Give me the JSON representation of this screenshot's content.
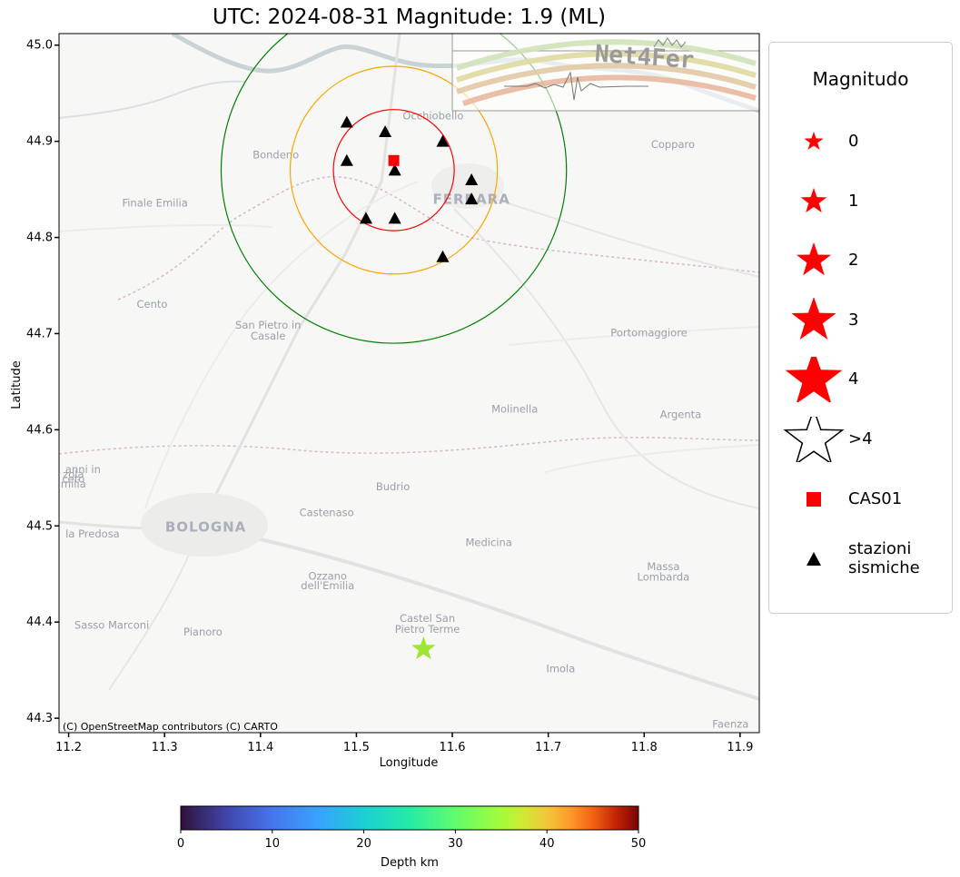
{
  "title": "UTC: 2024-08-31 Magnitude: 1.9 (ML)",
  "axes": {
    "xlabel": "Longitude",
    "ylabel": "Latitude",
    "xlim": [
      11.19,
      11.92
    ],
    "ylim": [
      44.285,
      45.012
    ],
    "xticks": [
      "11.2",
      "11.3",
      "11.4",
      "11.5",
      "11.6",
      "11.7",
      "11.8",
      "11.9"
    ],
    "yticks": [
      "44.3",
      "44.4",
      "44.5",
      "44.6",
      "44.7",
      "44.8",
      "44.9",
      "45.0"
    ]
  },
  "map": {
    "attribution": "(C) OpenStreetMap contributors (C) CARTO",
    "places": [
      {
        "name": "Occhiobello",
        "lon": 11.58,
        "lat": 44.923
      },
      {
        "name": "Bondeno",
        "lon": 11.416,
        "lat": 44.882
      },
      {
        "name": "Copparo",
        "lon": 11.83,
        "lat": 44.893
      },
      {
        "name": "Finale Emilia",
        "lon": 11.29,
        "lat": 44.832
      },
      {
        "name": "FERRARA",
        "lon": 11.62,
        "lat": 44.835
      },
      {
        "name": "Cento",
        "lon": 11.287,
        "lat": 44.727
      },
      {
        "name": "San Pietro in",
        "lon": 11.408,
        "lat": 44.705
      },
      {
        "name": "Casale",
        "lon": 11.408,
        "lat": 44.694
      },
      {
        "name": "Portomaggiore",
        "lon": 11.805,
        "lat": 44.697
      },
      {
        "name": "Molinella",
        "lon": 11.665,
        "lat": 44.618
      },
      {
        "name": "Argenta",
        "lon": 11.838,
        "lat": 44.612
      },
      {
        "name": "anni in",
        "lon": 11.215,
        "lat": 44.555
      },
      {
        "name": "ceto",
        "lon": 11.205,
        "lat": 44.545
      },
      {
        "name": "zola",
        "lon": 11.205,
        "lat": 44.55
      },
      {
        "name": "milia",
        "lon": 11.205,
        "lat": 44.54
      },
      {
        "name": "Budrio",
        "lon": 11.538,
        "lat": 44.537
      },
      {
        "name": "BOLOGNA",
        "lon": 11.343,
        "lat": 44.494
      },
      {
        "name": "Castenaso",
        "lon": 11.469,
        "lat": 44.51
      },
      {
        "name": "la Predosa",
        "lon": 11.225,
        "lat": 44.488
      },
      {
        "name": "Medicina",
        "lon": 11.638,
        "lat": 44.479
      },
      {
        "name": "Ozzano",
        "lon": 11.47,
        "lat": 44.444
      },
      {
        "name": "dell'Emilia",
        "lon": 11.47,
        "lat": 44.434
      },
      {
        "name": "Massa",
        "lon": 11.82,
        "lat": 44.454
      },
      {
        "name": "Lombarda",
        "lon": 11.82,
        "lat": 44.443
      },
      {
        "name": "Castel San",
        "lon": 11.574,
        "lat": 44.4
      },
      {
        "name": "Pietro Terme",
        "lon": 11.574,
        "lat": 44.389
      },
      {
        "name": "Sasso Marconi",
        "lon": 11.245,
        "lat": 44.393
      },
      {
        "name": "Pianoro",
        "lon": 11.34,
        "lat": 44.386
      },
      {
        "name": "Imola",
        "lon": 11.713,
        "lat": 44.348
      },
      {
        "name": "Faenza",
        "lon": 11.89,
        "lat": 44.29
      }
    ]
  },
  "chart_data": {
    "type": "scatter",
    "title": "UTC: 2024-08-31 Magnitude: 1.9 (ML)",
    "xlabel": "Longitude",
    "ylabel": "Latitude",
    "epicenter": {
      "lon": 11.57,
      "lat": 44.372,
      "magnitude": 1.9,
      "depth_km": 26,
      "color": "#9ee633"
    },
    "reference_station": {
      "name": "CAS01",
      "lon": 11.539,
      "lat": 44.88,
      "color": "#ff0000"
    },
    "stations": [
      {
        "lon": 11.49,
        "lat": 44.92
      },
      {
        "lon": 11.53,
        "lat": 44.91
      },
      {
        "lon": 11.59,
        "lat": 44.9
      },
      {
        "lon": 11.49,
        "lat": 44.88
      },
      {
        "lon": 11.54,
        "lat": 44.87
      },
      {
        "lon": 11.62,
        "lat": 44.86
      },
      {
        "lon": 11.62,
        "lat": 44.84
      },
      {
        "lon": 11.51,
        "lat": 44.82
      },
      {
        "lon": 11.54,
        "lat": 44.82
      },
      {
        "lon": 11.59,
        "lat": 44.78
      }
    ],
    "circles": [
      {
        "center_lon": 11.539,
        "center_lat": 44.87,
        "radius_deg": 0.063,
        "color": "#ff0000"
      },
      {
        "center_lon": 11.539,
        "center_lat": 44.87,
        "radius_deg": 0.108,
        "color": "#ffa500"
      },
      {
        "center_lon": 11.539,
        "center_lat": 44.87,
        "radius_deg": 0.18,
        "color": "#008000"
      }
    ]
  },
  "legend": {
    "title": "Magnitudo",
    "items": [
      {
        "label": "0",
        "symbol": "star-icon",
        "size": 11,
        "color": "#ff0000"
      },
      {
        "label": "1",
        "symbol": "star-icon",
        "size": 15,
        "color": "#ff0000"
      },
      {
        "label": "2",
        "symbol": "star-icon",
        "size": 20,
        "color": "#ff0000"
      },
      {
        "label": "3",
        "symbol": "star-icon",
        "size": 26,
        "color": "#ff0000"
      },
      {
        "label": "4",
        "symbol": "star-icon",
        "size": 33,
        "color": "#ff0000"
      },
      {
        "label": ">4",
        "symbol": "star-outline-icon",
        "size": 33,
        "color": "#ffffff"
      },
      {
        "label": "CAS01",
        "symbol": "square-icon",
        "size": 8,
        "color": "#ff0000"
      },
      {
        "label": "stazioni",
        "label2": "sismiche",
        "symbol": "triangle-icon",
        "size": 8,
        "color": "#000000"
      }
    ]
  },
  "colorbar": {
    "label": "Depth km",
    "ticks": [
      "0",
      "10",
      "20",
      "30",
      "40",
      "50"
    ],
    "range": [
      0,
      50
    ],
    "colormap": "turbo"
  },
  "logo": {
    "text": "Net4Fer"
  }
}
